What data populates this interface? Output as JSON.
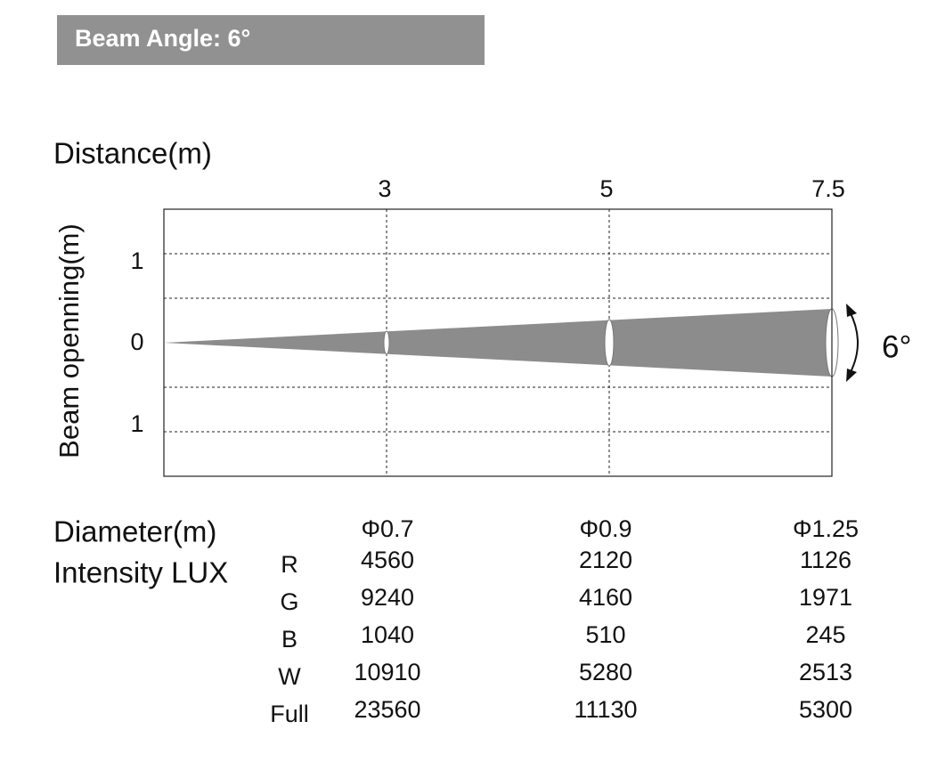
{
  "header": {
    "title": "Beam Angle: 6°"
  },
  "chart": {
    "x_title": "Distance(m)",
    "y_title": "Beam openning(m)",
    "distances": [
      "3",
      "5",
      "7.5"
    ],
    "y_ticks": [
      "1",
      "0",
      "1"
    ],
    "angle_label": "6°"
  },
  "table": {
    "diameter_label": "Diameter(m)",
    "intensity_label": "Intensity LUX",
    "diameters": [
      "Φ0.7",
      "Φ0.9",
      "Φ1.25"
    ],
    "rows": [
      {
        "label": "R",
        "values": [
          "4560",
          "2120",
          "1126"
        ]
      },
      {
        "label": "G",
        "values": [
          "9240",
          "4160",
          "1971"
        ]
      },
      {
        "label": "B",
        "values": [
          "1040",
          "510",
          "245"
        ]
      },
      {
        "label": "W",
        "values": [
          "10910",
          "5280",
          "2513"
        ]
      },
      {
        "label": "Full",
        "values": [
          "23560",
          "11130",
          "5300"
        ]
      }
    ]
  }
}
